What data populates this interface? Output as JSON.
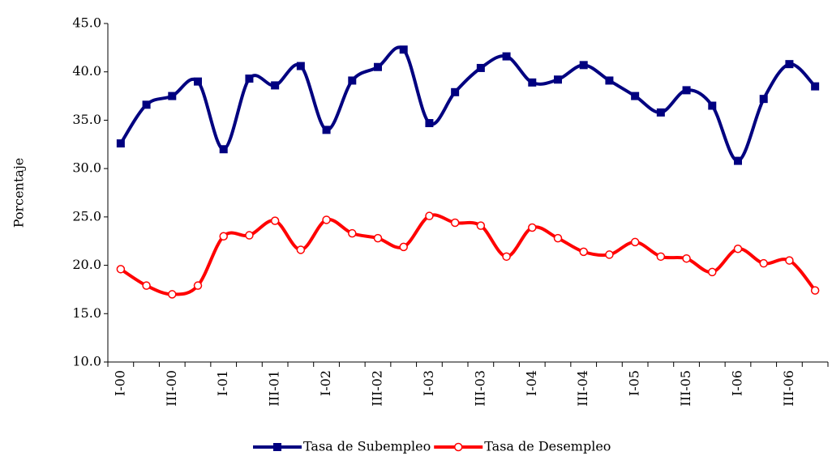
{
  "chart_data": {
    "type": "line",
    "y_label": "Porcentaje",
    "categories": [
      "I-00",
      null,
      "III-00",
      null,
      "I-01",
      null,
      "III-01",
      null,
      "I-02",
      null,
      "III-02",
      null,
      "I-03",
      null,
      "III-03",
      null,
      "I-04",
      null,
      "III-04",
      null,
      "I-05",
      null,
      "III-05",
      null,
      "I-06",
      null,
      "III-06",
      null
    ],
    "series": [
      {
        "name": "Tasa de Subempleo",
        "color": "#000080",
        "marker": "square",
        "values": [
          32.6,
          36.6,
          37.5,
          39.0,
          32.0,
          39.3,
          38.6,
          40.6,
          34.0,
          39.1,
          40.5,
          42.3,
          34.7,
          37.9,
          40.4,
          41.6,
          38.9,
          39.2,
          40.7,
          39.1,
          37.5,
          35.8,
          38.1,
          36.5,
          30.8,
          37.2,
          40.8,
          38.5
        ]
      },
      {
        "name": "Tasa de Desempleo",
        "color": "#ff0000",
        "marker": "circle",
        "values": [
          19.6,
          17.9,
          17.0,
          17.9,
          23.0,
          23.1,
          24.6,
          21.6,
          24.7,
          23.3,
          22.8,
          21.9,
          25.1,
          24.4,
          24.1,
          20.9,
          23.9,
          22.8,
          21.4,
          21.1,
          22.4,
          20.9,
          20.7,
          19.3,
          21.7,
          20.2,
          20.5,
          17.4
        ]
      }
    ],
    "ylim": [
      10,
      45
    ],
    "yticks": [
      {
        "value": 10,
        "label": "10.0"
      },
      {
        "value": 15,
        "label": "15.0"
      },
      {
        "value": 20,
        "label": "20.0"
      },
      {
        "value": 25,
        "label": "25.0"
      },
      {
        "value": 30,
        "label": "30.0"
      },
      {
        "value": 35,
        "label": "35.0"
      },
      {
        "value": 40,
        "label": "40.0"
      },
      {
        "value": 45,
        "label": "45.0"
      }
    ],
    "grid": false,
    "legend": "bottom"
  }
}
